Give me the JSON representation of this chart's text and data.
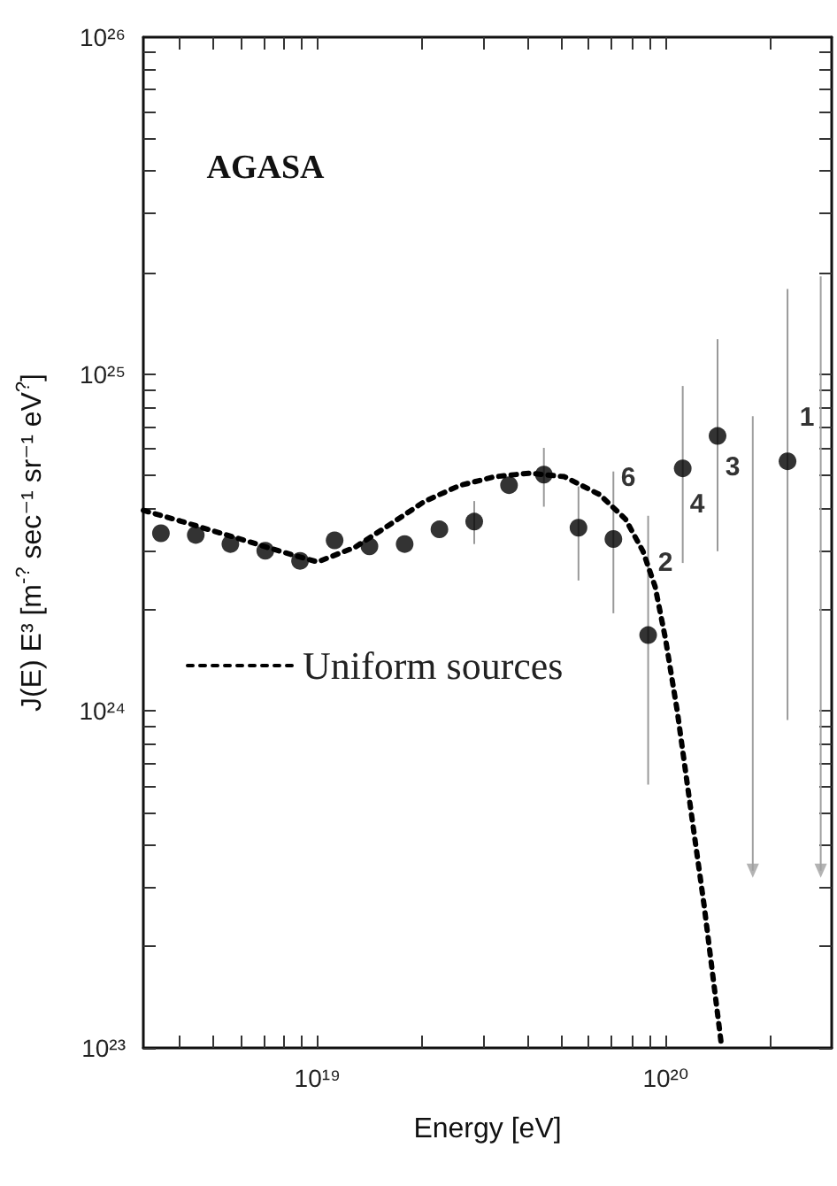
{
  "chart_data": {
    "type": "scatter",
    "xlabel": "Energy [eV]",
    "ylabel": "J(E) E³ [m$^{-?}$ sec⁻¹ sr⁻¹ eV$^{?}$]",
    "log": "xy",
    "xlim": [
      3.16e+18,
      3e+20
    ],
    "ylim": [
      1e+23,
      1e+26
    ],
    "xticks": [
      {
        "value": 4e+18,
        "label": null
      },
      {
        "value": 5e+18,
        "label": null
      },
      {
        "value": 6e+18,
        "label": null
      },
      {
        "value": 7e+18,
        "label": null
      },
      {
        "value": 8e+18,
        "label": null
      },
      {
        "value": 9e+18,
        "label": null
      },
      {
        "value": 1e+19,
        "label": "10¹⁹"
      },
      {
        "value": 2e+19,
        "label": null
      },
      {
        "value": 3e+19,
        "label": null
      },
      {
        "value": 4e+19,
        "label": null
      },
      {
        "value": 5e+19,
        "label": null
      },
      {
        "value": 6e+19,
        "label": null
      },
      {
        "value": 7e+19,
        "label": null
      },
      {
        "value": 8e+19,
        "label": null
      },
      {
        "value": 9e+19,
        "label": null
      },
      {
        "value": 1e+20,
        "label": "10²⁰"
      },
      {
        "value": 2e+20,
        "label": null
      }
    ],
    "yticks": [
      {
        "value": 1e+23,
        "label": "10²³"
      },
      {
        "value": 2e+23,
        "label": null
      },
      {
        "value": 3e+23,
        "label": null
      },
      {
        "value": 4e+23,
        "label": null
      },
      {
        "value": 5e+23,
        "label": null
      },
      {
        "value": 6e+23,
        "label": null
      },
      {
        "value": 7e+23,
        "label": null
      },
      {
        "value": 8e+23,
        "label": null
      },
      {
        "value": 9e+23,
        "label": null
      },
      {
        "value": 1e+24,
        "label": "10²⁴"
      },
      {
        "value": 2e+24,
        "label": null
      },
      {
        "value": 3e+24,
        "label": null
      },
      {
        "value": 4e+24,
        "label": null
      },
      {
        "value": 5e+24,
        "label": null
      },
      {
        "value": 6e+24,
        "label": null
      },
      {
        "value": 7e+24,
        "label": null
      },
      {
        "value": 8e+24,
        "label": null
      },
      {
        "value": 9e+24,
        "label": null
      },
      {
        "value": 1e+25,
        "label": "10²⁵"
      },
      {
        "value": 2e+25,
        "label": null
      },
      {
        "value": 3e+25,
        "label": null
      },
      {
        "value": 4e+25,
        "label": null
      },
      {
        "value": 5e+25,
        "label": null
      },
      {
        "value": 6e+25,
        "label": null
      },
      {
        "value": 7e+25,
        "label": null
      },
      {
        "value": 8e+25,
        "label": null
      },
      {
        "value": 9e+25,
        "label": null
      },
      {
        "value": 1e+26,
        "label": "10²⁶"
      }
    ],
    "grid": false,
    "legend": "left",
    "annotations": [
      "AGASA",
      "6",
      "2",
      "4",
      "3",
      "1"
    ],
    "series": [
      {
        "color": "#000000",
        "marker": "circle",
        "x": [
          3.55e+18,
          4.47e+18,
          5.62e+18,
          7.08e+18,
          8.91e+18,
          1.12e+19,
          1.41e+19,
          1.78e+19,
          2.24e+19,
          2.82e+19,
          3.55e+19,
          4.47e+19,
          5.62e+19,
          7.08e+19,
          8.91e+19,
          1.12e+20,
          1.41e+20,
          2.24e+20
        ],
        "values": [
          3.37e+24,
          3.33e+24,
          3.13e+24,
          2.99e+24,
          2.79e+24,
          3.21e+24,
          3.08e+24,
          3.13e+24,
          3.46e+24,
          3.65e+24,
          4.68e+24,
          5.03e+24,
          3.5e+24,
          3.24e+24,
          1.68e+24,
          5.25e+24,
          6.55e+24,
          5.51e+24
        ],
        "errors": [
          null,
          null,
          null,
          null,
          null,
          null,
          null,
          null,
          null,
          [
            3.13e+24,
            4.2e+24
          ],
          null,
          [
            4.04e+24,
            6.04e+24
          ],
          [
            2.44e+24,
            4.64e+24
          ],
          [
            1.95e+24,
            5.14e+24
          ],
          [
            6.05e+23,
            3.8e+24
          ],
          [
            2.75e+24,
            9.22e+24
          ],
          [
            2.98e+24,
            1.27e+25
          ],
          [
            9.4e+23,
            1.79e+25
          ]
        ]
      },
      {
        "color": "#a0a0a0",
        "marker": "triangle",
        "x": [
          1.78e+20,
          2.79e+20
        ],
        "values": [
          3.36e+23,
          3.36e+23
        ],
        "errors": [
          [
            3.36e+23,
            7.5e+24
          ],
          [
            3.36e+23,
            1.95e+25
          ]
        ]
      },
      {
        "type": "line",
        "name": "Uniform sources",
        "color": "#000000",
        "line_style": "dotted",
        "marker": "none",
        "x": [
          3.16e+18,
          4.05e+18,
          5.71e+18,
          8.07e+18,
          1e+19,
          1.28e+19,
          1.61e+19,
          2.03e+19,
          2.56e+19,
          3.23e+19,
          4.06e+19,
          5.12e+19,
          6.46e+19,
          7.67e+19,
          8.61e+19,
          9.33e+19,
          1e+20,
          1.08e+20,
          1.17e+20,
          1.29e+20,
          1.45e+20
        ],
        "values": [
          3.94e+24,
          3.66e+24,
          3.29e+24,
          2.95e+24,
          2.77e+24,
          3.06e+24,
          3.57e+24,
          4.19e+24,
          4.67e+24,
          4.96e+24,
          5.08e+24,
          4.96e+24,
          4.39e+24,
          3.71e+24,
          2.98e+24,
          2.34e+24,
          1.63e+24,
          1e+24,
          5.48e+23,
          2.65e+23,
          1e+23
        ]
      }
    ]
  }
}
